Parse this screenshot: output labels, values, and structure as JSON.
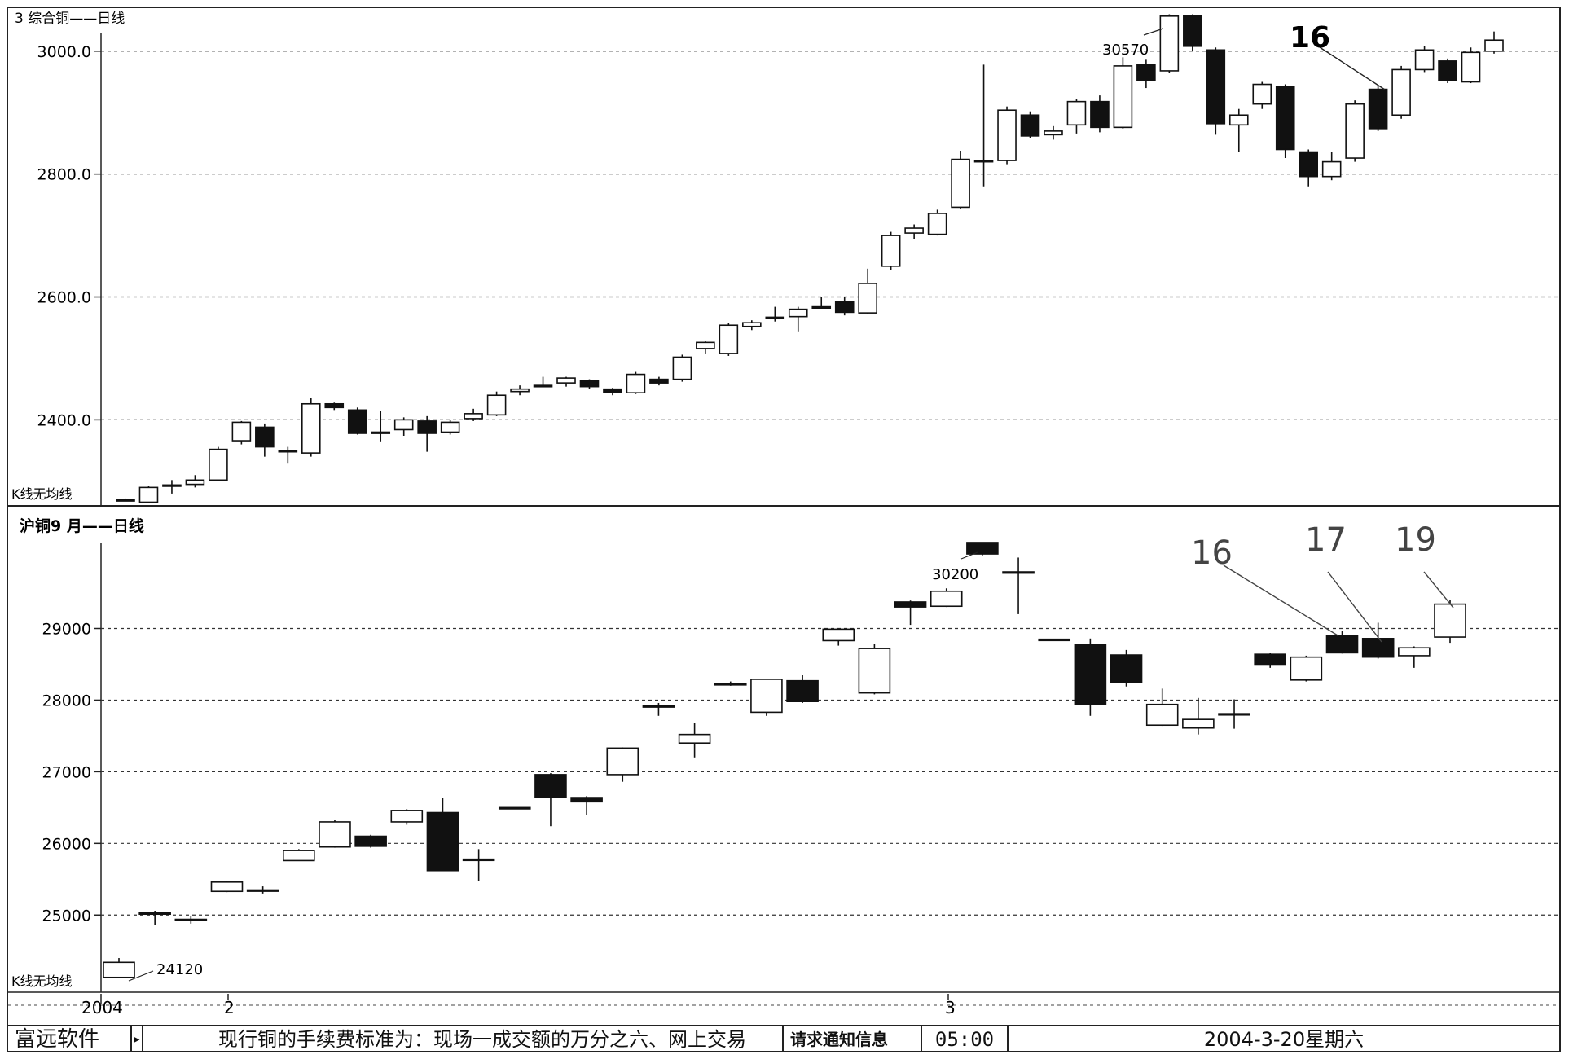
{
  "top_chart": {
    "title": "3 综合铜——日线",
    "indicator_label": "K线无均线",
    "peak_label": "30570",
    "annotation": "16"
  },
  "bottom_chart": {
    "title": "沪铜9 月——日线",
    "indicator_label": "K线无均线",
    "peak_label": "30200",
    "low_label": "24120",
    "annotations": [
      "16",
      "17",
      "19"
    ]
  },
  "x_axis": {
    "labels": [
      "2004",
      "2",
      "3"
    ]
  },
  "status_bar": {
    "brand": "富远软件",
    "arrow": "▸",
    "message": "现行铜的手续费标准为：现场一成交额的万分之六、网上交易",
    "notice": "请求通知信息",
    "time": "05:00",
    "date": "2004-3-20星期六"
  },
  "chart_data": [
    {
      "type": "candlestick",
      "title": "3 综合铜——日线",
      "ylim": [
        2260,
        3070
      ],
      "y_ticks": [
        2400.0,
        2600.0,
        2800.0,
        3000.0
      ],
      "y_tick_labels": [
        "2400.0",
        "2600.0",
        "2800.0",
        "3000.0"
      ],
      "grid": true,
      "candles": [
        [
          2270,
          2270,
          2268,
          2272
        ],
        [
          2266,
          2290,
          2264,
          2292
        ],
        [
          2292,
          2294,
          2280,
          2302
        ],
        [
          2295,
          2302,
          2290,
          2310
        ],
        [
          2302,
          2352,
          2300,
          2356
        ],
        [
          2366,
          2396,
          2360,
          2398
        ],
        [
          2388,
          2356,
          2340,
          2394
        ],
        [
          2348,
          2350,
          2330,
          2356
        ],
        [
          2346,
          2426,
          2340,
          2436
        ],
        [
          2426,
          2420,
          2416,
          2428
        ],
        [
          2416,
          2378,
          2376,
          2420
        ],
        [
          2378,
          2380,
          2365,
          2414
        ],
        [
          2384,
          2400,
          2374,
          2404
        ],
        [
          2398,
          2378,
          2348,
          2406
        ],
        [
          2380,
          2396,
          2376,
          2400
        ],
        [
          2402,
          2410,
          2398,
          2418
        ],
        [
          2408,
          2440,
          2406,
          2446
        ],
        [
          2446,
          2450,
          2440,
          2456
        ],
        [
          2454,
          2456,
          2454,
          2470
        ],
        [
          2460,
          2468,
          2454,
          2470
        ],
        [
          2464,
          2454,
          2450,
          2466
        ],
        [
          2450,
          2445,
          2440,
          2452
        ],
        [
          2444,
          2474,
          2442,
          2478
        ],
        [
          2466,
          2460,
          2456,
          2470
        ],
        [
          2466,
          2502,
          2462,
          2506
        ],
        [
          2516,
          2526,
          2508,
          2528
        ],
        [
          2508,
          2554,
          2504,
          2558
        ],
        [
          2552,
          2558,
          2546,
          2562
        ],
        [
          2566,
          2567,
          2560,
          2584
        ],
        [
          2568,
          2580,
          2544,
          2584
        ],
        [
          2584,
          2584,
          2582,
          2600
        ],
        [
          2592,
          2575,
          2570,
          2600
        ],
        [
          2574,
          2622,
          2572,
          2646
        ],
        [
          2650,
          2700,
          2644,
          2706
        ],
        [
          2704,
          2712,
          2694,
          2718
        ],
        [
          2702,
          2736,
          2700,
          2742
        ],
        [
          2746,
          2824,
          2744,
          2838
        ],
        [
          2820,
          2822,
          2780,
          2978
        ],
        [
          2822,
          2904,
          2816,
          2910
        ],
        [
          2896,
          2862,
          2858,
          2902
        ],
        [
          2864,
          2870,
          2856,
          2878
        ],
        [
          2880,
          2918,
          2866,
          2922
        ],
        [
          2918,
          2876,
          2868,
          2928
        ],
        [
          2876,
          2976,
          2874,
          2990
        ],
        [
          2978,
          2952,
          2940,
          2986
        ],
        [
          2968,
          3057,
          2964,
          3060
        ],
        [
          3057,
          3008,
          3000,
          3060
        ],
        [
          3002,
          2882,
          2864,
          3006
        ],
        [
          2880,
          2896,
          2836,
          2906
        ],
        [
          2914,
          2946,
          2906,
          2950
        ],
        [
          2942,
          2840,
          2826,
          2946
        ],
        [
          2836,
          2796,
          2780,
          2840
        ],
        [
          2796,
          2820,
          2790,
          2836
        ],
        [
          2826,
          2914,
          2820,
          2920
        ],
        [
          2938,
          2874,
          2870,
          2944
        ],
        [
          2896,
          2970,
          2890,
          2976
        ],
        [
          2970,
          3002,
          2966,
          3008
        ],
        [
          2984,
          2952,
          2948,
          2988
        ],
        [
          2950,
          2998,
          2948,
          3006
        ],
        [
          3000,
          3018,
          2996,
          3032
        ]
      ],
      "annotations": [
        {
          "text": "30570"
        },
        {
          "text": "16"
        }
      ]
    },
    {
      "type": "candlestick",
      "title": "沪铜9 月——日线",
      "ylim": [
        23900,
        30700
      ],
      "y_ticks": [
        25000,
        26000,
        27000,
        28000,
        29000
      ],
      "y_tick_labels": [
        "25000",
        "26000",
        "27000",
        "28000",
        "29000"
      ],
      "grid": true,
      "x_tick_labels": [
        "2004",
        "2",
        "3"
      ],
      "candles": [
        [
          24130,
          24340,
          24120,
          24400
        ],
        [
          25030,
          25030,
          24860,
          25060
        ],
        [
          24940,
          24940,
          24880,
          24980
        ],
        [
          25330,
          25460,
          25320,
          25470
        ],
        [
          25350,
          25350,
          25300,
          25400
        ],
        [
          25760,
          25900,
          25760,
          25920
        ],
        [
          25950,
          26300,
          25940,
          26330
        ],
        [
          26100,
          25960,
          25940,
          26120
        ],
        [
          26300,
          26460,
          26260,
          26480
        ],
        [
          26430,
          25620,
          25620,
          26640
        ],
        [
          25780,
          25780,
          25470,
          25920
        ],
        [
          26500,
          26500,
          26500,
          26500
        ],
        [
          26960,
          26640,
          26240,
          26980
        ],
        [
          26640,
          26580,
          26400,
          26660
        ],
        [
          26960,
          27330,
          26860,
          27340
        ],
        [
          27920,
          27920,
          27780,
          27960
        ],
        [
          27400,
          27520,
          27200,
          27680
        ],
        [
          28230,
          28230,
          28200,
          28260
        ],
        [
          27830,
          28290,
          27780,
          28300
        ],
        [
          28270,
          27980,
          27960,
          28350
        ],
        [
          28830,
          28990,
          28760,
          29000
        ],
        [
          28100,
          28720,
          28080,
          28780
        ],
        [
          29370,
          29300,
          29050,
          29390
        ],
        [
          29310,
          29520,
          29300,
          29560
        ],
        [
          30200,
          30040,
          30020,
          30200
        ],
        [
          29790,
          29790,
          29200,
          29990
        ],
        [
          28850,
          28850,
          28850,
          28850
        ],
        [
          28780,
          27940,
          27780,
          28860
        ],
        [
          28630,
          28250,
          28190,
          28700
        ],
        [
          27650,
          27940,
          27640,
          28160
        ],
        [
          27610,
          27730,
          27520,
          28030
        ],
        [
          27810,
          27810,
          27600,
          28010
        ],
        [
          28640,
          28500,
          28450,
          28660
        ],
        [
          28280,
          28600,
          28260,
          28620
        ],
        [
          28900,
          28660,
          28650,
          28960
        ],
        [
          28860,
          28600,
          28580,
          29080
        ],
        [
          28620,
          28730,
          28450,
          28750
        ],
        [
          28880,
          29340,
          28800,
          29400
        ]
      ],
      "annotations": [
        {
          "text": "30200"
        },
        {
          "text": "24120"
        },
        {
          "text": "16"
        },
        {
          "text": "17"
        },
        {
          "text": "19"
        }
      ]
    }
  ]
}
